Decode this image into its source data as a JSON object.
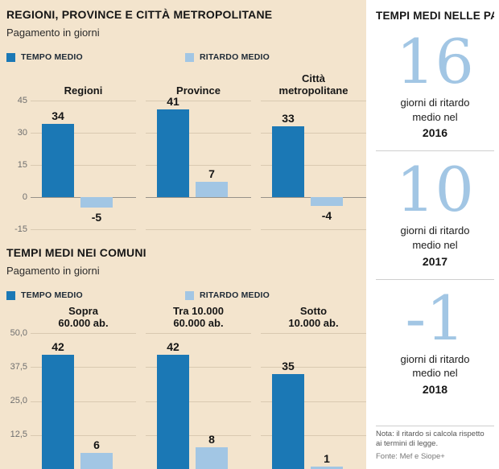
{
  "colors": {
    "background": "#f3e4cd",
    "panel_background": "#ffffff",
    "tempo_medio": "#1b78b5",
    "ritardo_medio": "#a2c6e4",
    "big_number": "#a2c6e4",
    "grid_line": "#d9c9b1",
    "zero_line": "#979289"
  },
  "chart_data": [
    {
      "type": "bar",
      "title": "REGIONI, PROVINCE E CITTÀ METROPOLITANE",
      "subtitle": "Pagamento in giorni",
      "legend": [
        "TEMPO MEDIO",
        "RITARDO MEDIO"
      ],
      "legend_position": "top",
      "grid": true,
      "categories": [
        "Regioni",
        "Province",
        "Città\nmetropolitane"
      ],
      "series": [
        {
          "name": "TEMPO MEDIO",
          "values": [
            34,
            41,
            33
          ]
        },
        {
          "name": "RITARDO MEDIO",
          "values": [
            -5,
            7,
            -4
          ]
        }
      ],
      "ylim": [
        -15,
        45
      ],
      "yticks": [
        {
          "label": "45",
          "value": 45
        },
        {
          "label": "30",
          "value": 30
        },
        {
          "label": "15",
          "value": 15
        },
        {
          "label": "0",
          "value": 0
        },
        {
          "label": "-15",
          "value": -15
        }
      ]
    },
    {
      "type": "bar",
      "title": "TEMPI MEDI NEI COMUNI",
      "subtitle": "Pagamento in giorni",
      "legend": [
        "TEMPO MEDIO",
        "RITARDO MEDIO"
      ],
      "legend_position": "top",
      "grid": true,
      "categories": [
        "Sopra\n60.000 ab.",
        "Tra 10.000\n60.000 ab.",
        "Sotto\n10.000 ab."
      ],
      "series": [
        {
          "name": "TEMPO MEDIO",
          "values": [
            42,
            42,
            35
          ]
        },
        {
          "name": "RITARDO MEDIO",
          "values": [
            6,
            8,
            1
          ]
        }
      ],
      "ylim": [
        0,
        50
      ],
      "yticks": [
        {
          "label": "50,0",
          "value": 50
        },
        {
          "label": "37,5",
          "value": 37.5
        },
        {
          "label": "25,0",
          "value": 25
        },
        {
          "label": "12,5",
          "value": 12.5
        }
      ]
    }
  ],
  "sidebar": {
    "title": "TEMPI MEDI NELLE PA",
    "items": [
      {
        "number": "16",
        "text": "giorni di ritardo\nmedio nel",
        "year": "2016"
      },
      {
        "number": "10",
        "text": "giorni di ritardo\nmedio nel",
        "year": "2017"
      },
      {
        "number": "-1",
        "text": "giorni di ritardo\nmedio nel",
        "year": "2018"
      }
    ],
    "note": "Nota: il ritardo si calcola rispetto\nai termini di legge.",
    "source": "Fonte: Mef e Siope+"
  }
}
